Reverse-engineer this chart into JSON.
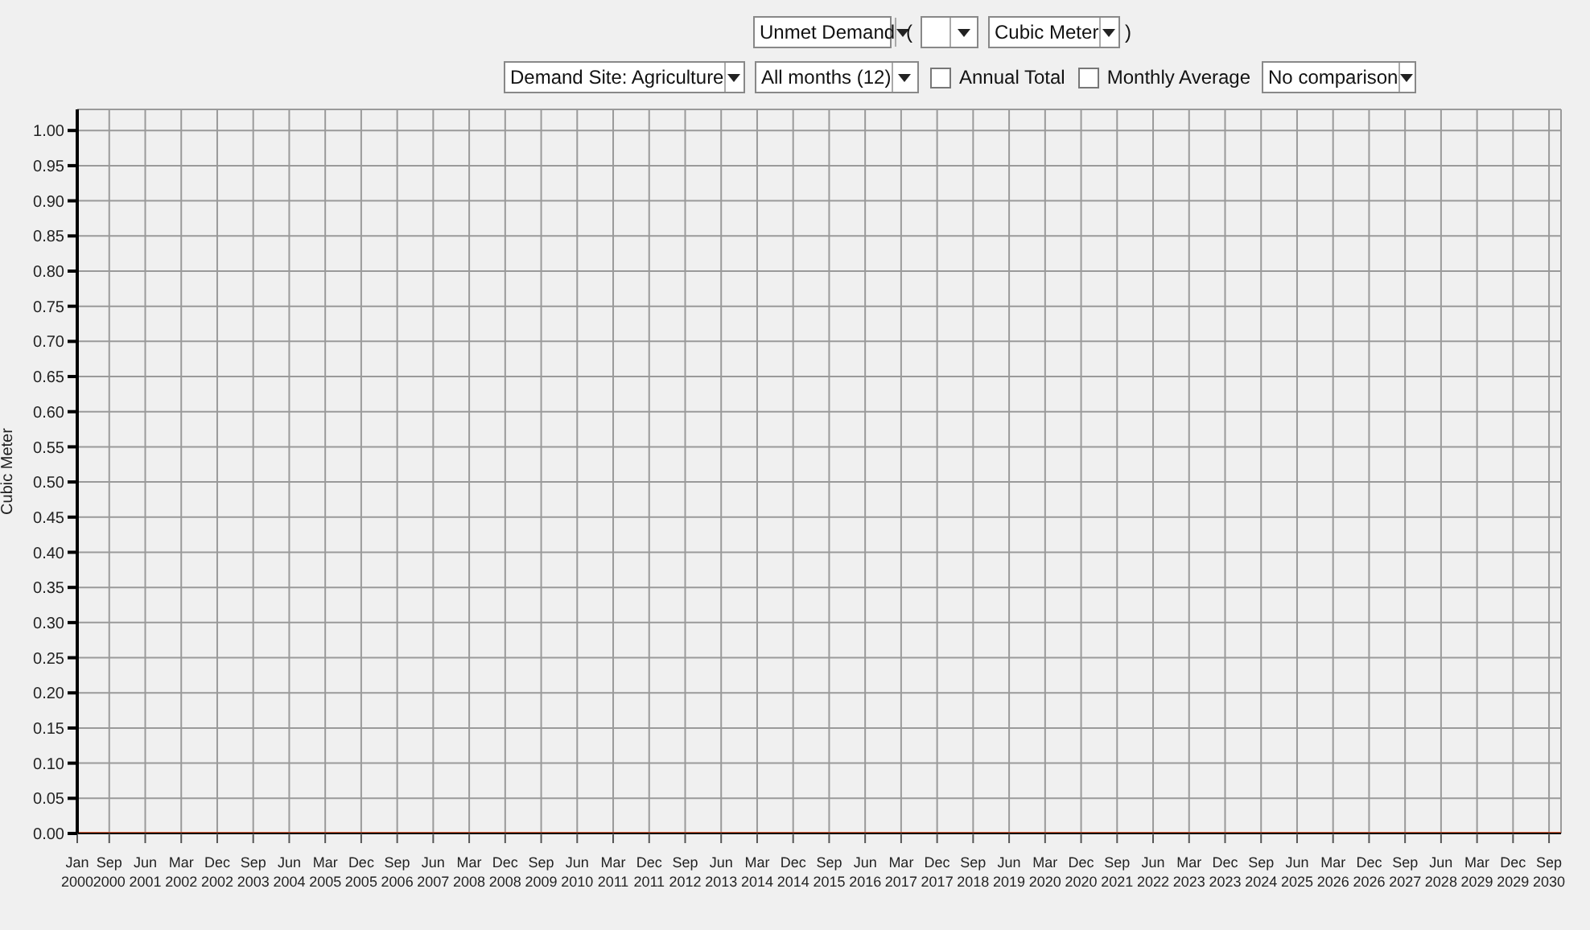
{
  "chart_data": {
    "type": "line",
    "ylabel": "Cubic Meter",
    "annotations": [
      "Unmet Demand",
      "(",
      "Cubic Meter",
      ")",
      "Demand Site: Agriculture",
      "All months (12)",
      "Annual Total",
      "Monthly Average",
      "No comparison"
    ],
    "x": [
      "2000-01",
      "2030-12"
    ],
    "series": [
      {
        "color": "#e0603a",
        "values": [
          0,
          0
        ]
      }
    ],
    "xlim": [
      "2000-01",
      "2030-12"
    ],
    "xticks": [
      {
        "value": "2000-01",
        "label": "Jan 2000"
      },
      {
        "value": "2000-09",
        "label": "Sep 2000"
      },
      {
        "value": "2001-06",
        "label": "Jun 2001"
      },
      {
        "value": "2002-03",
        "label": "Mar 2002"
      },
      {
        "value": "2002-12",
        "label": "Dec 2002"
      },
      {
        "value": "2003-09",
        "label": "Sep 2003"
      },
      {
        "value": "2004-06",
        "label": "Jun 2004"
      },
      {
        "value": "2005-03",
        "label": "Mar 2005"
      },
      {
        "value": "2005-12",
        "label": "Dec 2005"
      },
      {
        "value": "2006-09",
        "label": "Sep 2006"
      },
      {
        "value": "2007-06",
        "label": "Jun 2007"
      },
      {
        "value": "2008-03",
        "label": "Mar 2008"
      },
      {
        "value": "2008-12",
        "label": "Dec 2008"
      },
      {
        "value": "2009-09",
        "label": "Sep 2009"
      },
      {
        "value": "2010-06",
        "label": "Jun 2010"
      },
      {
        "value": "2011-03",
        "label": "Mar 2011"
      },
      {
        "value": "2011-12",
        "label": "Dec 2011"
      },
      {
        "value": "2012-09",
        "label": "Sep 2012"
      },
      {
        "value": "2013-06",
        "label": "Jun 2013"
      },
      {
        "value": "2014-03",
        "label": "Mar 2014"
      },
      {
        "value": "2014-12",
        "label": "Dec 2014"
      },
      {
        "value": "2015-09",
        "label": "Sep 2015"
      },
      {
        "value": "2016-06",
        "label": "Jun 2016"
      },
      {
        "value": "2017-03",
        "label": "Mar 2017"
      },
      {
        "value": "2017-12",
        "label": "Dec 2017"
      },
      {
        "value": "2018-09",
        "label": "Sep 2018"
      },
      {
        "value": "2019-06",
        "label": "Jun 2019"
      },
      {
        "value": "2020-03",
        "label": "Mar 2020"
      },
      {
        "value": "2020-12",
        "label": "Dec 2020"
      },
      {
        "value": "2021-09",
        "label": "Sep 2021"
      },
      {
        "value": "2022-06",
        "label": "Jun 2022"
      },
      {
        "value": "2023-03",
        "label": "Mar 2023"
      },
      {
        "value": "2023-12",
        "label": "Dec 2023"
      },
      {
        "value": "2024-09",
        "label": "Sep 2024"
      },
      {
        "value": "2025-06",
        "label": "Jun 2025"
      },
      {
        "value": "2026-03",
        "label": "Mar 2026"
      },
      {
        "value": "2026-12",
        "label": "Dec 2026"
      },
      {
        "value": "2027-09",
        "label": "Sep 2027"
      },
      {
        "value": "2028-06",
        "label": "Jun 2028"
      },
      {
        "value": "2029-03",
        "label": "Mar 2029"
      },
      {
        "value": "2029-12",
        "label": "Dec 2029"
      },
      {
        "value": "2030-09",
        "label": "Sep 2030"
      }
    ],
    "ylim": [
      0,
      1.03
    ],
    "yticks": [
      {
        "value": 0,
        "label": "0.00"
      },
      {
        "value": 0.05,
        "label": "0.05"
      },
      {
        "value": 0.1,
        "label": "0.10"
      },
      {
        "value": 0.15,
        "label": "0.15"
      },
      {
        "value": 0.2,
        "label": "0.20"
      },
      {
        "value": 0.25,
        "label": "0.25"
      },
      {
        "value": 0.3,
        "label": "0.30"
      },
      {
        "value": 0.35,
        "label": "0.35"
      },
      {
        "value": 0.4,
        "label": "0.40"
      },
      {
        "value": 0.45,
        "label": "0.45"
      },
      {
        "value": 0.5,
        "label": "0.50"
      },
      {
        "value": 0.55,
        "label": "0.55"
      },
      {
        "value": 0.6,
        "label": "0.60"
      },
      {
        "value": 0.65,
        "label": "0.65"
      },
      {
        "value": 0.7,
        "label": "0.70"
      },
      {
        "value": 0.75,
        "label": "0.75"
      },
      {
        "value": 0.8,
        "label": "0.80"
      },
      {
        "value": 0.85,
        "label": "0.85"
      },
      {
        "value": 0.9,
        "label": "0.90"
      },
      {
        "value": 0.95,
        "label": "0.95"
      },
      {
        "value": 1,
        "label": "1.00"
      }
    ],
    "grid": true,
    "legend": false,
    "marker": "none",
    "line_style": "solid"
  }
}
